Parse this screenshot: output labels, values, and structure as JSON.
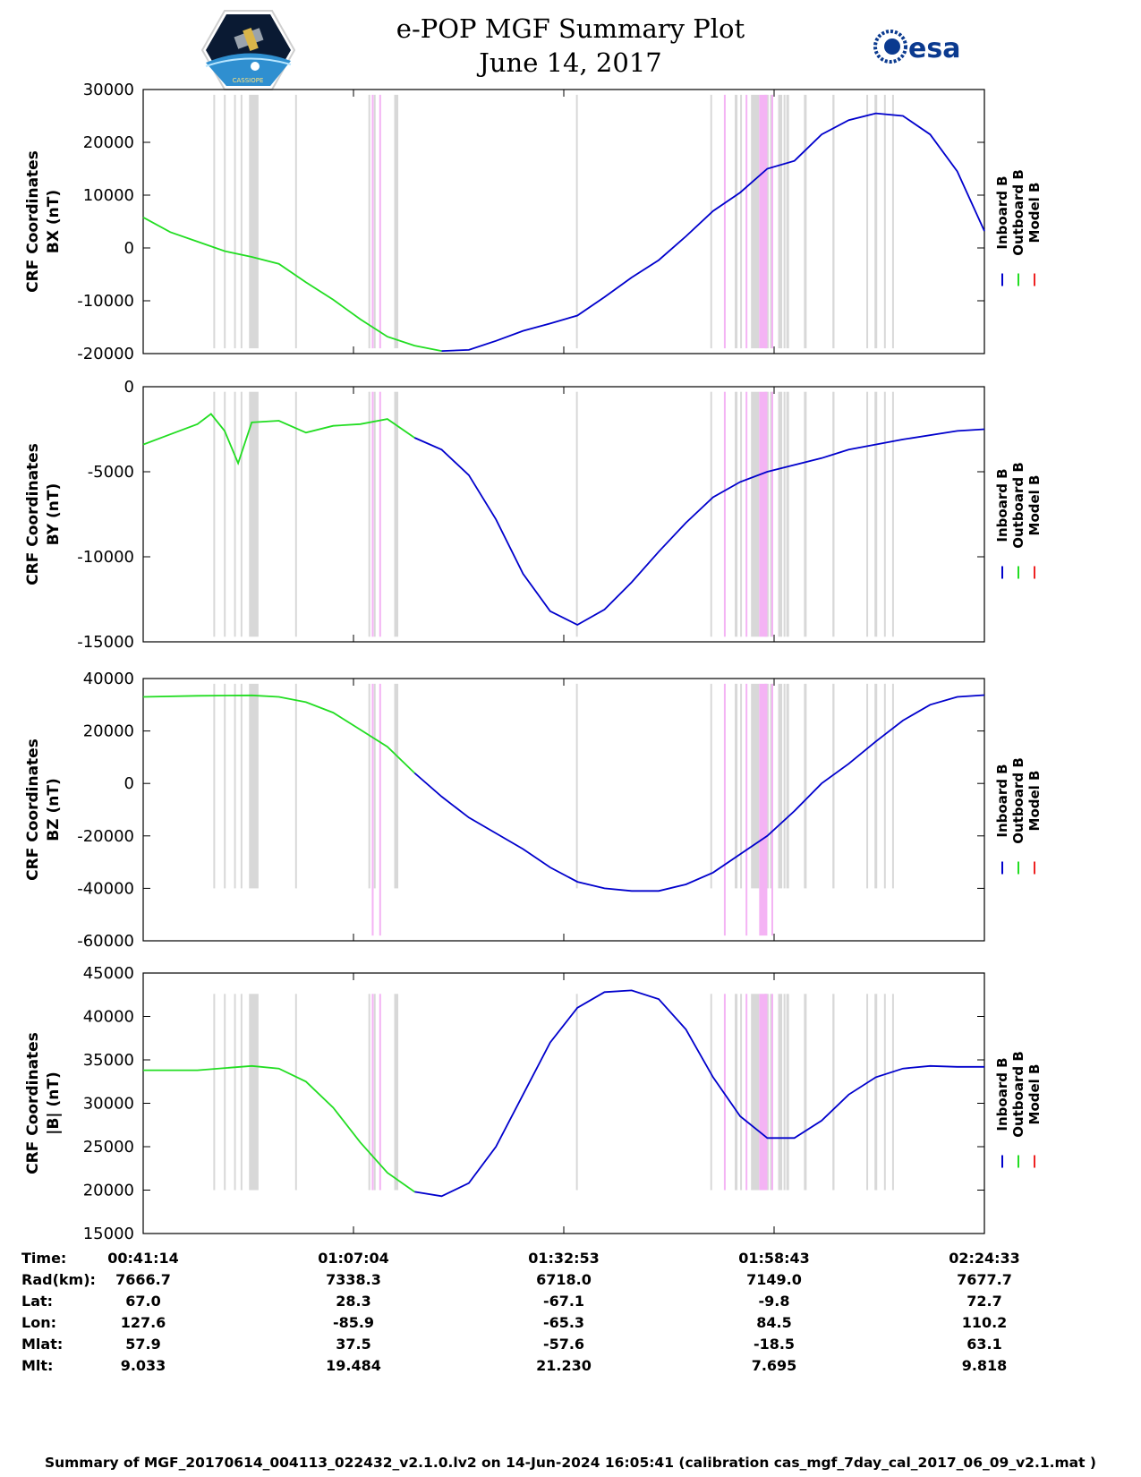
{
  "header": {
    "title_line1": "e-POP MGF Summary Plot",
    "title_line2": "June 14, 2017",
    "left_logo": "satellite-mission-logo",
    "left_logo_text": "CASSIOPE",
    "right_logo_text": "esa"
  },
  "colors": {
    "inboard": "#0000cc",
    "outboard": "#22dd22",
    "model": "#ee2222",
    "gray_band": "#d8d8d8",
    "pink_band": "#f4b3f4"
  },
  "legend": {
    "inboard": "Inboard B",
    "outboard": "Outboard B",
    "model": "Model B"
  },
  "chart_data": [
    {
      "type": "line",
      "ylabel_line1": "CRF Coordinates",
      "ylabel_line2": "BX (nT)",
      "ylim": [
        -20000,
        30000
      ],
      "yticks": [
        -20000,
        -10000,
        0,
        10000,
        20000,
        30000
      ],
      "ytick_labels": [
        "-20000",
        "-10000",
        "0",
        "10000",
        "20000",
        "30000"
      ],
      "x": [
        0,
        200,
        400,
        600,
        800,
        1000,
        1200,
        1400,
        1600,
        1800,
        2000,
        2200,
        2400,
        2600,
        2800,
        3000,
        3200,
        3400,
        3600,
        3800,
        4000,
        4200,
        4400,
        4600,
        4800,
        5000,
        5200,
        5400,
        5600,
        5800,
        6000,
        6200
      ],
      "values": [
        5800,
        3000,
        1200,
        -600,
        -1700,
        -3000,
        -6500,
        -9800,
        -13500,
        -16800,
        -18500,
        -19500,
        -19300,
        -17600,
        -15700,
        -14300,
        -12800,
        -9300,
        -5600,
        -2300,
        2200,
        7000,
        10500,
        15000,
        16500,
        21500,
        24200,
        25500,
        25000,
        21500,
        14500,
        3200
      ],
      "green_end_index": 11
    },
    {
      "type": "line",
      "ylabel_line1": "CRF Coordinates",
      "ylabel_line2": "BY (nT)",
      "ylim": [
        -15000,
        0
      ],
      "yticks": [
        -15000,
        -10000,
        -5000,
        0
      ],
      "ytick_labels": [
        "-15000",
        "-10000",
        "-5000",
        "0"
      ],
      "x": [
        0,
        200,
        400,
        500,
        600,
        700,
        800,
        1000,
        1200,
        1400,
        1600,
        1800,
        2000,
        2200,
        2400,
        2600,
        2800,
        3000,
        3200,
        3400,
        3600,
        3800,
        4000,
        4200,
        4400,
        4600,
        4800,
        5000,
        5200,
        5600,
        6000,
        6200
      ],
      "values": [
        -3400,
        -2800,
        -2200,
        -1600,
        -2600,
        -4500,
        -2100,
        -2000,
        -2700,
        -2300,
        -2200,
        -1900,
        -3000,
        -3700,
        -5200,
        -7800,
        -11000,
        -13200,
        -14000,
        -13100,
        -11500,
        -9700,
        -8000,
        -6500,
        -5600,
        -5000,
        -4600,
        -4200,
        -3700,
        -3100,
        -2600,
        -2500
      ],
      "green_end_index": 12
    },
    {
      "type": "line",
      "ylabel_line1": "CRF Coordinates",
      "ylabel_line2": "BZ (nT)",
      "ylim": [
        -60000,
        40000
      ],
      "yticks": [
        -60000,
        -40000,
        -20000,
        0,
        20000,
        40000
      ],
      "ytick_labels": [
        "-60000",
        "-40000",
        "-20000",
        "0",
        "20000",
        "40000"
      ],
      "x": [
        0,
        400,
        800,
        1000,
        1200,
        1400,
        1600,
        1800,
        2000,
        2200,
        2400,
        2600,
        2800,
        3000,
        3200,
        3400,
        3600,
        3800,
        4000,
        4200,
        4400,
        4600,
        4800,
        5000,
        5200,
        5400,
        5600,
        5800,
        6000,
        6200
      ],
      "values": [
        33000,
        33400,
        33600,
        33000,
        31000,
        27000,
        20500,
        14000,
        4000,
        -5000,
        -13000,
        -19000,
        -25000,
        -32000,
        -37500,
        -40000,
        -41000,
        -41000,
        -38500,
        -34000,
        -27000,
        -20000,
        -10500,
        0,
        7500,
        16000,
        24000,
        30000,
        33000,
        33700
      ],
      "green_end_index": 8
    },
    {
      "type": "line",
      "ylabel_line1": "CRF Coordinates",
      "ylabel_line2": "|B| (nT)",
      "ylim": [
        15000,
        45000
      ],
      "yticks": [
        15000,
        20000,
        25000,
        30000,
        35000,
        40000,
        45000
      ],
      "ytick_labels": [
        "15000",
        "20000",
        "25000",
        "30000",
        "35000",
        "40000",
        "45000"
      ],
      "x": [
        0,
        400,
        800,
        1000,
        1200,
        1400,
        1600,
        1800,
        2000,
        2200,
        2400,
        2600,
        2800,
        3000,
        3200,
        3400,
        3600,
        3800,
        4000,
        4200,
        4400,
        4600,
        4800,
        5000,
        5200,
        5400,
        5600,
        5800,
        6000,
        6200
      ],
      "values": [
        33800,
        33800,
        34300,
        34000,
        32500,
        29500,
        25500,
        22000,
        19800,
        19300,
        20800,
        25000,
        31000,
        37000,
        41000,
        42800,
        43000,
        42000,
        38500,
        33000,
        28500,
        26000,
        26000,
        28000,
        31000,
        33000,
        34000,
        34300,
        34200,
        34200
      ],
      "green_end_index": 8
    }
  ],
  "x_axis": {
    "range": [
      0,
      6200
    ],
    "ticks": [
      0,
      1550,
      3100,
      4650,
      6200
    ]
  },
  "bands": {
    "gray": [
      [
        517,
        524
      ],
      [
        595,
        603
      ],
      [
        670,
        676
      ],
      [
        718,
        725
      ],
      [
        780,
        850
      ],
      [
        1120,
        1128
      ],
      [
        1660,
        1668
      ],
      [
        1700,
        1708
      ],
      [
        1850,
        1880
      ],
      [
        3190,
        3200
      ],
      [
        4180,
        4188
      ],
      [
        4360,
        4380
      ],
      [
        4400,
        4410
      ],
      [
        4480,
        4540
      ],
      [
        4580,
        4610
      ],
      [
        4620,
        4630
      ],
      [
        4680,
        4710
      ],
      [
        4720,
        4730
      ],
      [
        4740,
        4760
      ],
      [
        4870,
        4890
      ],
      [
        5080,
        5095
      ],
      [
        5330,
        5340
      ],
      [
        5390,
        5410
      ],
      [
        5460,
        5470
      ],
      [
        5520,
        5530
      ]
    ],
    "pink": [
      [
        1685,
        1690
      ],
      [
        1740,
        1746
      ],
      [
        4280,
        4286
      ],
      [
        4440,
        4446
      ],
      [
        4540,
        4600
      ],
      [
        4630,
        4640
      ]
    ]
  },
  "info_table": {
    "labels": [
      "Time:",
      "Rad(km):",
      "Lat:",
      "Lon:",
      "Mlat:",
      "Mlt:"
    ],
    "columns": [
      [
        "00:41:14",
        "7666.7",
        "67.0",
        "127.6",
        "57.9",
        "9.033"
      ],
      [
        "01:07:04",
        "7338.3",
        "28.3",
        "-85.9",
        "37.5",
        "19.484"
      ],
      [
        "01:32:53",
        "6718.0",
        "-67.1",
        "-65.3",
        "-57.6",
        "21.230"
      ],
      [
        "01:58:43",
        "7149.0",
        "-9.8",
        "84.5",
        "-18.5",
        "7.695"
      ],
      [
        "02:24:33",
        "7677.7",
        "72.7",
        "110.2",
        "63.1",
        "9.818"
      ]
    ]
  },
  "footer": "Summary of MGF_20170614_004113_022432_v2.1.0.lv2 on 14-Jun-2024 16:05:41 (calibration cas_mgf_7day_cal_2017_06_09_v2.1.mat )"
}
